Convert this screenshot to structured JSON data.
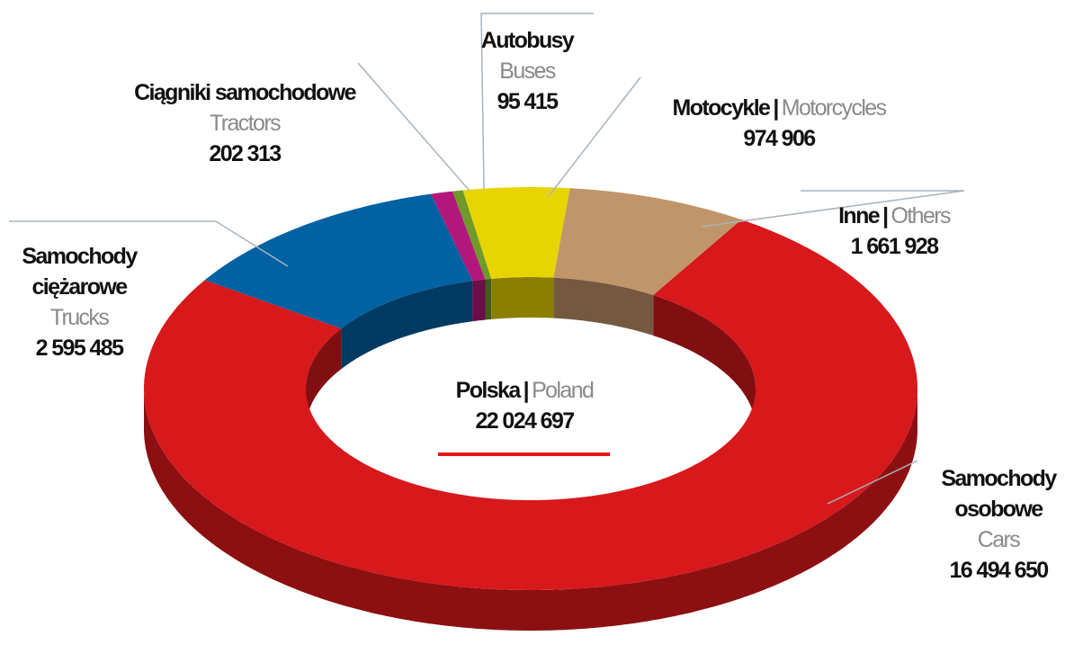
{
  "chart_data": {
    "type": "donut",
    "categories": [
      "Samochody osobowe",
      "Samochody ciężarowe",
      "Ciągniki samochodowe",
      "Autobusy",
      "Motocykle",
      "Inne"
    ],
    "categories_en": [
      "Cars",
      "Trucks",
      "Tractors",
      "Buses",
      "Motorcycles",
      "Others"
    ],
    "values": [
      16494650,
      2595485,
      202313,
      95415,
      974906,
      1661928
    ],
    "value_labels": [
      "16 494 650",
      "2 595 485",
      "202 313",
      "95 415",
      "974 906",
      "1 661 928"
    ],
    "colors": [
      "#d7191c",
      "#0061a3",
      "#b3177c",
      "#6e9a2a",
      "#e8d400",
      "#c1956a"
    ],
    "separator": "|",
    "center": {
      "name": "Polska",
      "name_en": "Poland",
      "value": 22024697,
      "value_label": "22 024 697"
    }
  }
}
